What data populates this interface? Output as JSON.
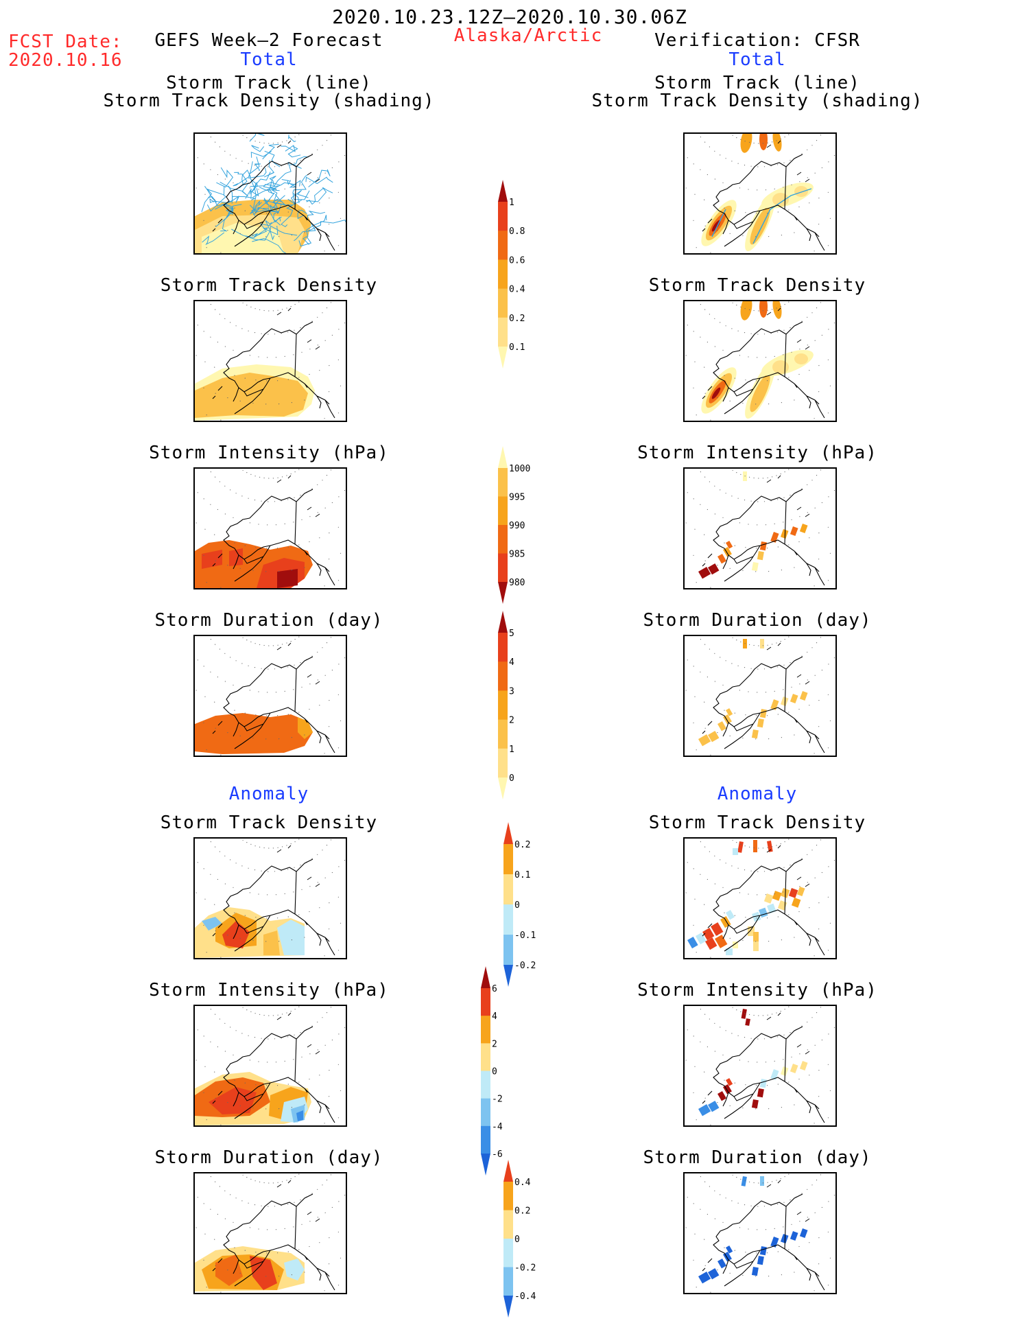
{
  "header": {
    "period": "2020.10.23.12Z–2020.10.30.06Z",
    "fcst_label": "FCST Date:",
    "fcst_date": "2020.10.16",
    "left_title": "GEFS Week–2 Forecast",
    "region": "Alaska/Arctic",
    "right_title": "Verification: CFSR"
  },
  "sections": {
    "total": "Total",
    "anomaly": "Anomaly"
  },
  "panel_titles": {
    "track_line": "Storm Track (line)",
    "track_density_shading": "Storm Track Density (shading)",
    "track_density": "Storm Track Density",
    "intensity": "Storm Intensity (hPa)",
    "duration": "Storm Duration (day)"
  },
  "colors": {
    "light_yellow": "#fff7b0",
    "yellow": "#ffe08a",
    "gold": "#fbc14a",
    "orange": "#f7a41c",
    "dark_orange": "#f06a14",
    "red": "#e8401c",
    "dark_red": "#a00d0d",
    "light_blue": "#bfeaf7",
    "mid_blue": "#7dc3f0",
    "blue": "#3a8ee6",
    "dark_blue": "#1d63d8",
    "track_line": "#33a3dd"
  },
  "chart_data": [
    {
      "type": "heatmap",
      "panel": "gefs-total-track-density-with-tracks",
      "title": "Storm Track (line) / Storm Track Density (shading)",
      "colorbar": "density",
      "max_value_category": "0.2-0.4"
    },
    {
      "type": "heatmap",
      "panel": "cfsr-total-track-density-with-tracks",
      "title": "Storm Track (line) / Storm Track Density (shading)",
      "colorbar": "density",
      "max_value_category": ">1"
    },
    {
      "type": "heatmap",
      "panel": "gefs-total-track-density",
      "title": "Storm Track Density",
      "colorbar": "density"
    },
    {
      "type": "heatmap",
      "panel": "cfsr-total-track-density",
      "title": "Storm Track Density",
      "colorbar": "density"
    },
    {
      "type": "heatmap",
      "panel": "gefs-total-intensity",
      "title": "Storm Intensity (hPa)",
      "colorbar": "intensity"
    },
    {
      "type": "heatmap",
      "panel": "cfsr-total-intensity",
      "title": "Storm Intensity (hPa)",
      "colorbar": "intensity"
    },
    {
      "type": "heatmap",
      "panel": "gefs-total-duration",
      "title": "Storm Duration (day)",
      "colorbar": "duration"
    },
    {
      "type": "heatmap",
      "panel": "cfsr-total-duration",
      "title": "Storm Duration (day)",
      "colorbar": "duration"
    },
    {
      "type": "heatmap",
      "panel": "gefs-anom-track-density",
      "title": "Storm Track Density",
      "colorbar": "density_anom"
    },
    {
      "type": "heatmap",
      "panel": "cfsr-anom-track-density",
      "title": "Storm Track Density",
      "colorbar": "density_anom"
    },
    {
      "type": "heatmap",
      "panel": "gefs-anom-intensity",
      "title": "Storm Intensity (hPa)",
      "colorbar": "intensity_anom"
    },
    {
      "type": "heatmap",
      "panel": "cfsr-anom-intensity",
      "title": "Storm Intensity (hPa)",
      "colorbar": "intensity_anom"
    },
    {
      "type": "heatmap",
      "panel": "gefs-anom-duration",
      "title": "Storm Duration (day)",
      "colorbar": "duration_anom"
    },
    {
      "type": "heatmap",
      "panel": "cfsr-anom-duration",
      "title": "Storm Duration (day)",
      "colorbar": "duration_anom"
    }
  ],
  "colorbars": {
    "density": {
      "labels": [
        "1",
        "0.8",
        "0.6",
        "0.4",
        "0.2",
        "0.1"
      ],
      "colors": [
        "#a00d0d",
        "#e8401c",
        "#f06a14",
        "#f7a41c",
        "#fbc14a",
        "#ffe08a",
        "#fff7b0"
      ]
    },
    "intensity": {
      "labels": [
        "1000",
        "995",
        "990",
        "985",
        "980"
      ],
      "colors": [
        "#fff7b0",
        "#fbc14a",
        "#f7a41c",
        "#f06a14",
        "#e8401c",
        "#a00d0d"
      ]
    },
    "duration": {
      "labels": [
        "5",
        "4",
        "3",
        "2",
        "1",
        "0"
      ],
      "colors": [
        "#a00d0d",
        "#e8401c",
        "#f06a14",
        "#f7a41c",
        "#fbc14a",
        "#ffe08a",
        "#fff7b0"
      ]
    },
    "density_anom": {
      "labels": [
        "0.2",
        "0.1",
        "0",
        "-0.1",
        "-0.2"
      ],
      "colors": [
        "#e8401c",
        "#f7a41c",
        "#ffe08a",
        "#bfeaf7",
        "#7dc3f0",
        "#1d63d8"
      ]
    },
    "intensity_anom": {
      "labels": [
        "6",
        "4",
        "2",
        "0",
        "-2",
        "-4",
        "-6"
      ],
      "colors": [
        "#a00d0d",
        "#e8401c",
        "#f7a41c",
        "#ffe08a",
        "#bfeaf7",
        "#7dc3f0",
        "#3a8ee6",
        "#1d63d8"
      ]
    },
    "duration_anom": {
      "labels": [
        "0.4",
        "0.2",
        "0",
        "-0.2",
        "-0.4"
      ],
      "colors": [
        "#e8401c",
        "#f7a41c",
        "#ffe08a",
        "#bfeaf7",
        "#7dc3f0",
        "#1d63d8"
      ]
    }
  }
}
